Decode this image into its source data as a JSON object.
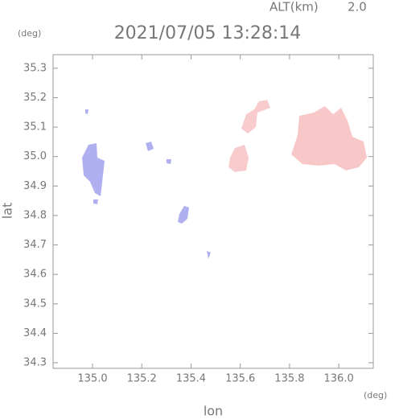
{
  "chart_data": {
    "type": "map",
    "title": "2021/07/05 13:28:14",
    "altitude_label": "ALT(km)",
    "altitude_value": "2.0",
    "x_label": "lon",
    "y_label": "lat",
    "x_unit": "(deg)",
    "y_unit": "(deg)",
    "xlim": [
      134.84,
      136.14
    ],
    "ylim": [
      34.281,
      35.346
    ],
    "xticks": [
      {
        "value": 135,
        "label": "135.0"
      },
      135.2,
      135.4,
      135.6,
      135.8,
      {
        "value": 136,
        "label": "136.0"
      }
    ],
    "yticks": [
      34.3,
      34.4,
      34.5,
      34.6,
      34.7,
      34.8,
      34.9,
      {
        "value": 35,
        "label": "35.0"
      },
      35.1,
      35.2,
      35.3
    ]
  }
}
